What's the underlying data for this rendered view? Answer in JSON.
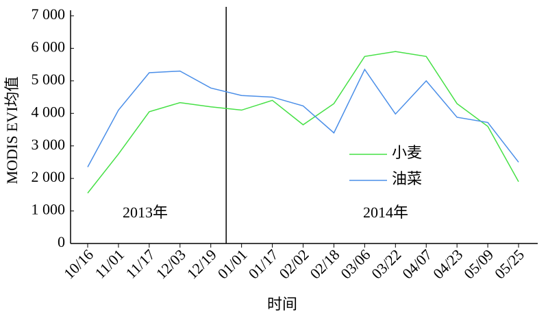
{
  "chart_data": {
    "type": "line",
    "x_label": "时间",
    "y_label": "MODIS EVI均值",
    "categories": [
      "10/16",
      "11/01",
      "11/17",
      "12/03",
      "12/19",
      "01/01",
      "01/17",
      "02/02",
      "02/18",
      "03/06",
      "03/22",
      "04/07",
      "04/23",
      "05/09",
      "05/25"
    ],
    "series": [
      {
        "name": "小麦",
        "color": "#45e045",
        "values": [
          1550,
          2750,
          4050,
          4330,
          4200,
          4100,
          4400,
          3650,
          4300,
          5750,
          5900,
          5750,
          4300,
          3600,
          1900
        ]
      },
      {
        "name": "油菜",
        "color": "#4a8ee8",
        "values": [
          2350,
          4100,
          5250,
          5300,
          4780,
          4550,
          4500,
          4230,
          3400,
          5350,
          3980,
          5000,
          3880,
          3720,
          2500
        ]
      }
    ],
    "ylim": [
      0,
      7000
    ],
    "yticks": [
      0,
      {
        "value": 1000,
        "label": "1 000"
      },
      {
        "value": 2000,
        "label": "2 000"
      },
      {
        "value": 3000,
        "label": "3 000"
      },
      {
        "value": 4000,
        "label": "4 000"
      },
      {
        "value": 5000,
        "label": "5 000"
      },
      {
        "value": 6000,
        "label": "6 000"
      },
      {
        "value": 7000,
        "label": "7 000"
      }
    ],
    "annotations": [
      "2013年",
      "2014年"
    ],
    "legend": "right"
  }
}
